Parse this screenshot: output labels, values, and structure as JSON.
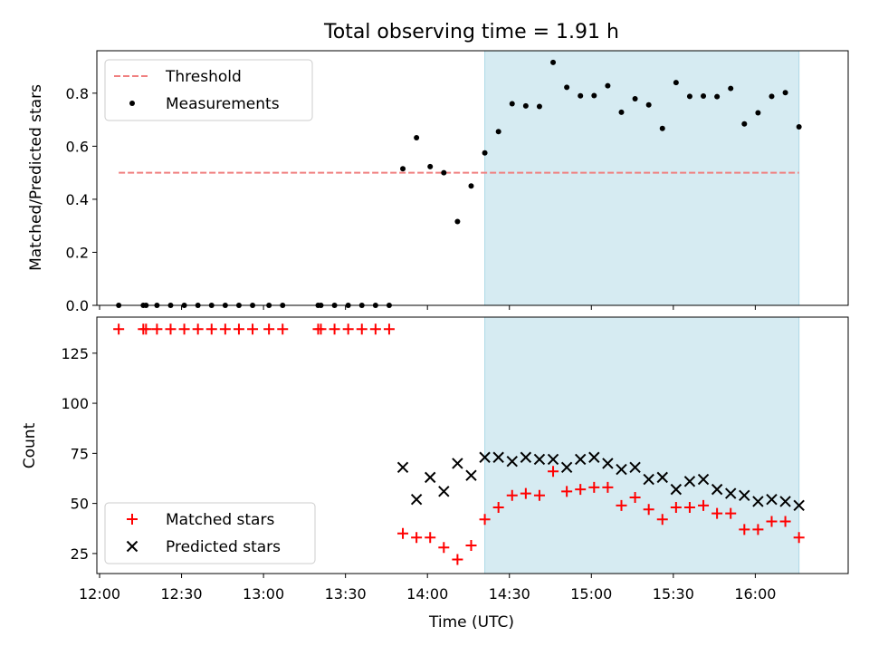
{
  "figure": {
    "title": "Total observing time = 1.91 h",
    "xlabel": "Time (UTC)",
    "x_ticks": [
      "12:00",
      "12:30",
      "13:00",
      "13:30",
      "14:00",
      "14:30",
      "15:00",
      "15:30",
      "16:00"
    ]
  },
  "colors": {
    "shade": "#add8e6",
    "threshold": "#f08080",
    "matched": "#ff0000",
    "predicted": "#000000",
    "measurement": "#000000"
  },
  "chart_data": [
    {
      "type": "scatter",
      "panel": "top",
      "ylabel": "Matched/Predicted stars",
      "xlim": [
        "11:59",
        "16:34"
      ],
      "ylim": [
        0,
        0.96
      ],
      "y_ticks": [
        "0.0",
        "0.2",
        "0.4",
        "0.6",
        "0.8"
      ],
      "shaded_interval": [
        "14:21",
        "16:16"
      ],
      "threshold": {
        "name": "Threshold",
        "y": 0.5,
        "x_range": [
          "12:07",
          "16:16"
        ]
      },
      "legend": [
        "Threshold",
        "Measurements"
      ],
      "legend_position": "top-left",
      "series": [
        {
          "name": "Measurements",
          "x": [
            "12:07",
            "12:16",
            "12:17",
            "12:21",
            "12:26",
            "12:31",
            "12:36",
            "12:41",
            "12:46",
            "12:51",
            "12:56",
            "13:02",
            "13:07",
            "13:20",
            "13:21",
            "13:26",
            "13:31",
            "13:36",
            "13:41",
            "13:46",
            "13:51",
            "13:56",
            "14:01",
            "14:06",
            "14:11",
            "14:16",
            "14:21",
            "14:26",
            "14:31",
            "14:36",
            "14:41",
            "14:46",
            "14:51",
            "14:56",
            "15:01",
            "15:06",
            "15:11",
            "15:16",
            "15:21",
            "15:26",
            "15:31",
            "15:36",
            "15:41",
            "15:46",
            "15:51",
            "15:56",
            "16:01",
            "16:06",
            "16:11",
            "16:16"
          ],
          "y": [
            0,
            0,
            0,
            0,
            0,
            0,
            0,
            0,
            0,
            0,
            0,
            0,
            0,
            0,
            0,
            0,
            0,
            0,
            0,
            0,
            0.515,
            0.632,
            0.523,
            0.5,
            0.316,
            0.45,
            0.575,
            0.655,
            0.76,
            0.752,
            0.75,
            0.916,
            0.822,
            0.79,
            0.791,
            0.828,
            0.728,
            0.779,
            0.756,
            0.667,
            0.84,
            0.788,
            0.789,
            0.787,
            0.818,
            0.684,
            0.726,
            0.788,
            0.802,
            0.673
          ]
        }
      ]
    },
    {
      "type": "scatter",
      "panel": "bottom",
      "ylabel": "Count",
      "xlim": [
        "11:59",
        "16:34"
      ],
      "ylim": [
        15,
        143
      ],
      "y_ticks": [
        "25",
        "50",
        "75",
        "100",
        "125"
      ],
      "shaded_interval": [
        "14:21",
        "16:16"
      ],
      "legend": [
        "Matched stars",
        "Predicted stars"
      ],
      "legend_position": "bottom-left",
      "series": [
        {
          "name": "Matched stars",
          "x": [
            "12:07",
            "12:16",
            "12:17",
            "12:21",
            "12:26",
            "12:31",
            "12:36",
            "12:41",
            "12:46",
            "12:51",
            "12:56",
            "13:02",
            "13:07",
            "13:20",
            "13:21",
            "13:26",
            "13:31",
            "13:36",
            "13:41",
            "13:46",
            "13:51",
            "13:56",
            "14:01",
            "14:06",
            "14:11",
            "14:16",
            "14:21",
            "14:26",
            "14:31",
            "14:36",
            "14:41",
            "14:46",
            "14:51",
            "14:56",
            "15:01",
            "15:06",
            "15:11",
            "15:16",
            "15:21",
            "15:26",
            "15:31",
            "15:36",
            "15:41",
            "15:46",
            "15:51",
            "15:56",
            "16:01",
            "16:06",
            "16:11",
            "16:16"
          ],
          "y": [
            137,
            137,
            137,
            137,
            137,
            137,
            137,
            137,
            137,
            137,
            137,
            137,
            137,
            137,
            137,
            137,
            137,
            137,
            137,
            137,
            35,
            33,
            33,
            28,
            22,
            29,
            42,
            48,
            54,
            55,
            54,
            66,
            56,
            57,
            58,
            58,
            49,
            53,
            47,
            42,
            48,
            48,
            49,
            45,
            45,
            37,
            37,
            41,
            41,
            33
          ]
        },
        {
          "name": "Predicted stars",
          "x": [
            "13:51",
            "13:56",
            "14:01",
            "14:06",
            "14:11",
            "14:16",
            "14:21",
            "14:26",
            "14:31",
            "14:36",
            "14:41",
            "14:46",
            "14:51",
            "14:56",
            "15:01",
            "15:06",
            "15:11",
            "15:16",
            "15:21",
            "15:26",
            "15:31",
            "15:36",
            "15:41",
            "15:46",
            "15:51",
            "15:56",
            "16:01",
            "16:06",
            "16:11",
            "16:16"
          ],
          "y": [
            68,
            52,
            63,
            56,
            70,
            64,
            73,
            73,
            71,
            73,
            72,
            72,
            68,
            72,
            73,
            70,
            67,
            68,
            62,
            63,
            57,
            61,
            62,
            57,
            55,
            54,
            51,
            52,
            51,
            49
          ]
        }
      ]
    }
  ]
}
